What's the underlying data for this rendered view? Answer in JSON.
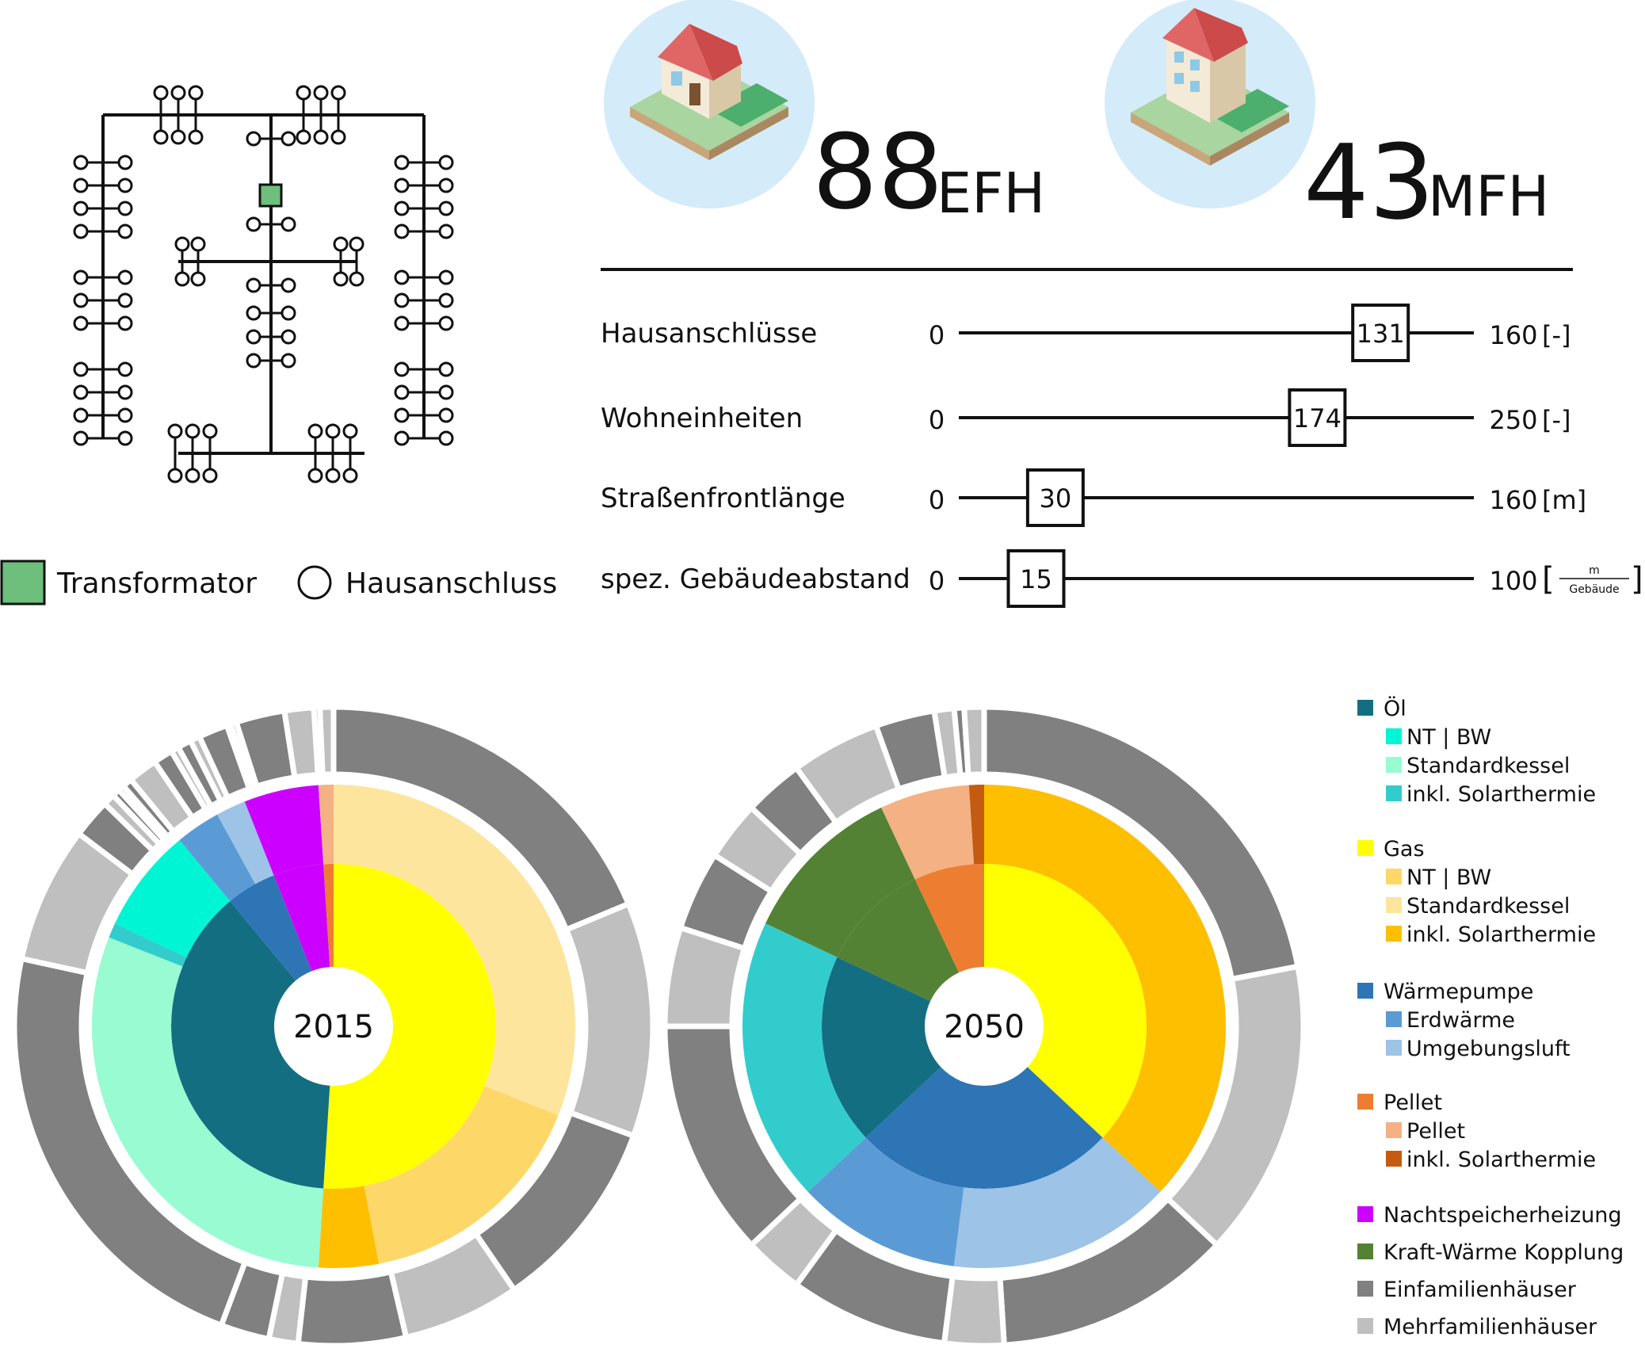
{
  "network": {
    "legend": [
      {
        "symbol": "transformer",
        "label": "Transformator",
        "color": "#6dbf7b"
      },
      {
        "symbol": "connection",
        "label": "Hausanschluss"
      }
    ]
  },
  "counters": [
    {
      "number": "88",
      "unit": "EFH",
      "icon": "single-family-house-icon"
    },
    {
      "number": "43",
      "unit": "MFH",
      "icon": "multi-family-house-icon"
    }
  ],
  "parameters": [
    {
      "label": "Hausanschlüsse",
      "min": 0,
      "max": 160,
      "value": 131,
      "unit": "[-]",
      "min_label": "0",
      "max_label": "160",
      "value_label": "131"
    },
    {
      "label": "Wohneinheiten",
      "min": 0,
      "max": 250,
      "value": 174,
      "unit": "[-]",
      "min_label": "0",
      "max_label": "250",
      "value_label": "174"
    },
    {
      "label": "Straßenfrontlänge",
      "min": 0,
      "max": 160,
      "value": 30,
      "unit": "[m]",
      "min_label": "0",
      "max_label": "160",
      "value_label": "30"
    },
    {
      "label": "spez. Gebäudeabstand",
      "min": 0,
      "max": 100,
      "value": 15,
      "unit_num": "m",
      "unit_den": "Gebäude",
      "min_label": "0",
      "max_label": "100",
      "value_label": "15"
    }
  ],
  "colors": {
    "oel": "#146e82",
    "oel_nt": "#00f5d4",
    "oel_std": "#98fbd2",
    "oel_sol": "#33cccc",
    "gas": "#ffff00",
    "gas_nt": "#fdd868",
    "gas_std": "#fde59d",
    "gas_sol": "#fdbf00",
    "wp": "#2e75b6",
    "wp_erd": "#5b9bd5",
    "wp_luft": "#9dc3e6",
    "pellet": "#ed7d31",
    "pellet_p": "#f4b183",
    "pellet_sol": "#c55a11",
    "nsh": "#cc00ff",
    "kwk": "#548235",
    "efh": "#808080",
    "mfh": "#bfbfbf"
  },
  "chart_data": [
    {
      "type": "sunburst",
      "center_label": "2015",
      "inner": [
        {
          "key": "gas",
          "value": 51
        },
        {
          "key": "oel",
          "value": 38
        },
        {
          "key": "wp",
          "value": 5
        },
        {
          "key": "nsh",
          "value": 5
        },
        {
          "key": "pellet",
          "value": 1
        }
      ],
      "middle": [
        {
          "key": "gas_std",
          "value": 31
        },
        {
          "key": "gas_nt",
          "value": 16
        },
        {
          "key": "gas_sol",
          "value": 4
        },
        {
          "key": "oel_std",
          "value": 30
        },
        {
          "key": "oel_sol",
          "value": 1
        },
        {
          "key": "oel_nt",
          "value": 7
        },
        {
          "key": "wp_erd",
          "value": 3
        },
        {
          "key": "wp_luft",
          "value": 2
        },
        {
          "key": "nsh",
          "value": 5
        },
        {
          "key": "pellet_p",
          "value": 1
        }
      ],
      "outer": [
        {
          "key": "efh",
          "value": 19
        },
        {
          "key": "mfh",
          "value": 12
        },
        {
          "key": "efh",
          "value": 10
        },
        {
          "key": "mfh",
          "value": 6
        },
        {
          "key": "efh",
          "value": 5.5
        },
        {
          "key": "mfh",
          "value": 1.5
        },
        {
          "key": "efh",
          "value": 2.5
        },
        {
          "key": "efh",
          "value": 23
        },
        {
          "key": "mfh",
          "value": 7
        },
        {
          "key": "efh",
          "value": 2
        },
        {
          "key": "mfh",
          "value": 0.6
        },
        {
          "key": "efh",
          "value": 0.4
        },
        {
          "key": "mfh",
          "value": 0.3
        },
        {
          "key": "efh",
          "value": 0.5
        },
        {
          "key": "mfh",
          "value": 1.5
        },
        {
          "key": "efh",
          "value": 1
        },
        {
          "key": "mfh",
          "value": 0.4
        },
        {
          "key": "efh",
          "value": 0.7
        },
        {
          "key": "mfh",
          "value": 0.5
        },
        {
          "key": "efh",
          "value": 1.5
        },
        {
          "key": "mfh",
          "value": 0.2
        },
        {
          "key": "efh",
          "value": 0.3
        },
        {
          "key": "efh",
          "value": 2.5
        },
        {
          "key": "mfh",
          "value": 1.5
        },
        {
          "key": "efh",
          "value": 0.3
        },
        {
          "key": "mfh",
          "value": 0.7
        }
      ]
    },
    {
      "type": "sunburst",
      "center_label": "2050",
      "inner": [
        {
          "key": "gas",
          "value": 37
        },
        {
          "key": "wp",
          "value": 26
        },
        {
          "key": "oel",
          "value": 19
        },
        {
          "key": "kwk",
          "value": 11
        },
        {
          "key": "pellet",
          "value": 7
        }
      ],
      "middle": [
        {
          "key": "gas_sol",
          "value": 37
        },
        {
          "key": "wp_luft",
          "value": 15
        },
        {
          "key": "wp_erd",
          "value": 11
        },
        {
          "key": "oel_sol",
          "value": 19
        },
        {
          "key": "kwk",
          "value": 11
        },
        {
          "key": "pellet_p",
          "value": 6
        },
        {
          "key": "pellet_sol",
          "value": 1
        }
      ],
      "outer": [
        {
          "key": "efh",
          "value": 22
        },
        {
          "key": "mfh",
          "value": 15
        },
        {
          "key": "efh",
          "value": 12
        },
        {
          "key": "mfh",
          "value": 3
        },
        {
          "key": "efh",
          "value": 8
        },
        {
          "key": "mfh",
          "value": 3
        },
        {
          "key": "efh",
          "value": 12
        },
        {
          "key": "mfh",
          "value": 5
        },
        {
          "key": "efh",
          "value": 4
        },
        {
          "key": "mfh",
          "value": 3
        },
        {
          "key": "efh",
          "value": 3
        },
        {
          "key": "mfh",
          "value": 4.5
        },
        {
          "key": "efh",
          "value": 3
        },
        {
          "key": "mfh",
          "value": 1
        },
        {
          "key": "efh",
          "value": 0.5
        },
        {
          "key": "mfh",
          "value": 1
        }
      ]
    }
  ],
  "legend": {
    "groups": [
      {
        "label": "Öl",
        "key": "oel",
        "items": [
          {
            "label": "NT | BW",
            "key": "oel_nt"
          },
          {
            "label": "Standardkessel",
            "key": "oel_std"
          },
          {
            "label": "inkl. Solarthermie",
            "key": "oel_sol"
          }
        ]
      },
      {
        "label": "Gas",
        "key": "gas",
        "items": [
          {
            "label": "NT | BW",
            "key": "gas_nt"
          },
          {
            "label": "Standardkessel",
            "key": "gas_std"
          },
          {
            "label": "inkl. Solarthermie",
            "key": "gas_sol"
          }
        ]
      },
      {
        "label": "Wärmepumpe",
        "key": "wp",
        "items": [
          {
            "label": "Erdwärme",
            "key": "wp_erd"
          },
          {
            "label": "Umgebungsluft",
            "key": "wp_luft"
          }
        ]
      },
      {
        "label": "Pellet",
        "key": "pellet",
        "items": [
          {
            "label": "Pellet",
            "key": "pellet_p"
          },
          {
            "label": "inkl. Solarthermie",
            "key": "pellet_sol"
          }
        ]
      },
      {
        "label": "Nachtspeicherheizung",
        "key": "nsh",
        "items": []
      },
      {
        "label": "Kraft-Wärme Kopplung",
        "key": "kwk",
        "items": []
      },
      {
        "label": "Einfamilienhäuser",
        "key": "efh",
        "items": []
      },
      {
        "label": "Mehrfamilienhäuser",
        "key": "mfh",
        "items": []
      }
    ]
  }
}
